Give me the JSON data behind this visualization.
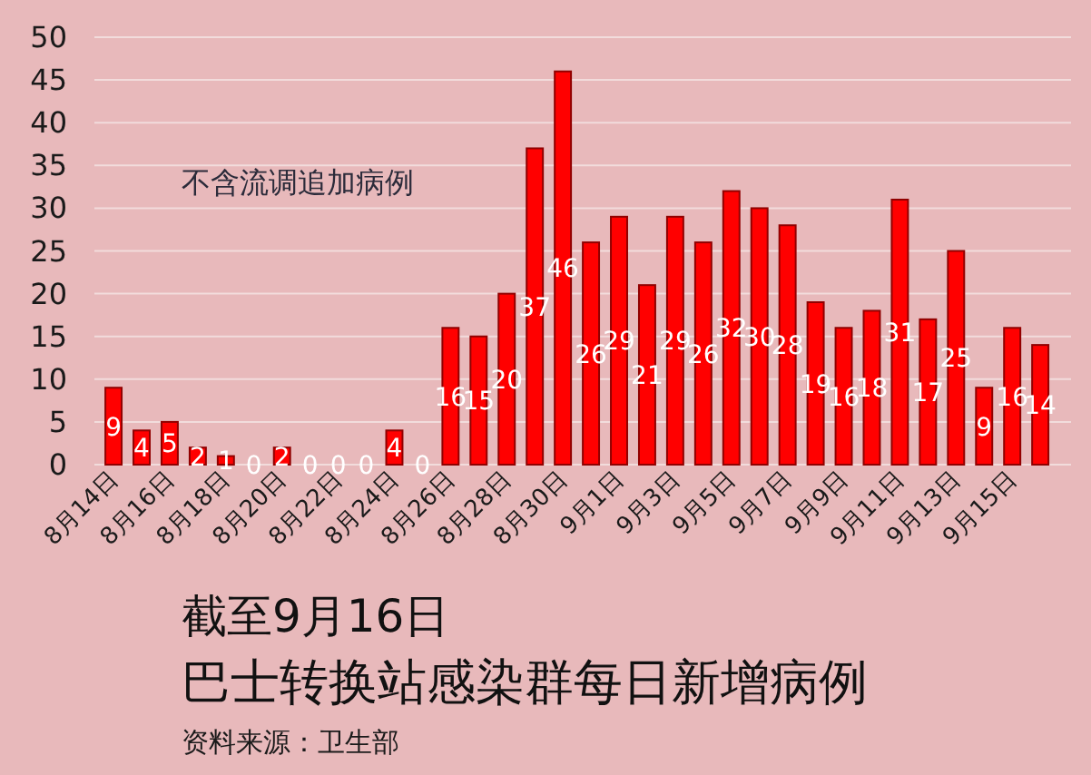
{
  "chart_data": {
    "type": "bar",
    "title": "截至9月16日",
    "subtitle": "巴士转换站感染群每日新增病例",
    "annotations": [
      "不含流调追加病例",
      "资料来源：卫生部"
    ],
    "categories": [
      "8月14日",
      null,
      "8月16日",
      null,
      "8月18日",
      null,
      "8月20日",
      null,
      "8月22日",
      null,
      "8月24日",
      null,
      "8月26日",
      null,
      "8月28日",
      null,
      "8月30日",
      null,
      "9月1日",
      null,
      "9月3日",
      null,
      "9月5日",
      null,
      "9月7日",
      null,
      "9月9日",
      null,
      "9月11日",
      null,
      "9月13日",
      null,
      "9月15日",
      null
    ],
    "values": [
      9,
      4,
      5,
      2,
      1,
      0,
      2,
      0,
      0,
      0,
      4,
      0,
      16,
      15,
      20,
      37,
      46,
      26,
      29,
      21,
      29,
      26,
      32,
      30,
      28,
      19,
      16,
      18,
      31,
      17,
      25,
      9,
      16,
      14
    ],
    "color": "#ff0000",
    "ylim": [
      0,
      50
    ],
    "yticks": [
      0,
      5,
      10,
      15,
      20,
      25,
      30,
      35,
      40,
      45,
      50
    ],
    "grid": "y",
    "data_labels": true
  }
}
